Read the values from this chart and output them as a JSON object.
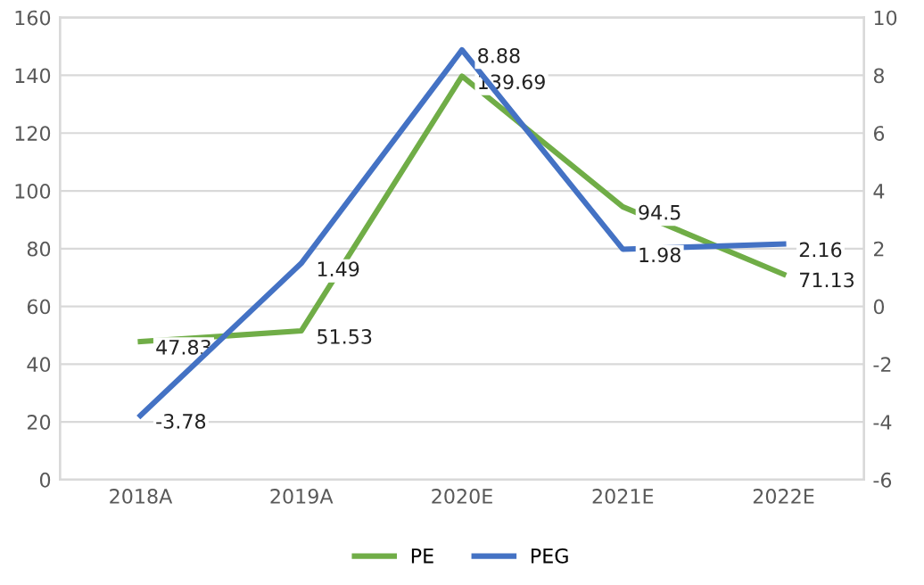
{
  "chart_data": {
    "type": "line",
    "categories": [
      "2018A",
      "2019A",
      "2020E",
      "2021E",
      "2022E"
    ],
    "series": [
      {
        "name": "PE",
        "color": "#70ad47",
        "values": [
          47.83,
          51.53,
          139.69,
          94.5,
          71.13
        ]
      },
      {
        "name": "PEG",
        "color": "#4472c4",
        "axis": "y2",
        "values": [
          -3.78,
          1.49,
          8.88,
          1.98,
          2.16
        ]
      }
    ],
    "ylim": [
      0,
      160
    ],
    "yticks": [
      0,
      20,
      40,
      60,
      80,
      100,
      120,
      140,
      160
    ],
    "y2lim": [
      -6,
      10
    ],
    "y2ticks": [
      -6,
      -4,
      -2,
      0,
      2,
      4,
      6,
      8,
      10
    ],
    "grid": "y",
    "legend": "bottom",
    "data_labels": true,
    "marker": "none",
    "line_style": "solid"
  }
}
